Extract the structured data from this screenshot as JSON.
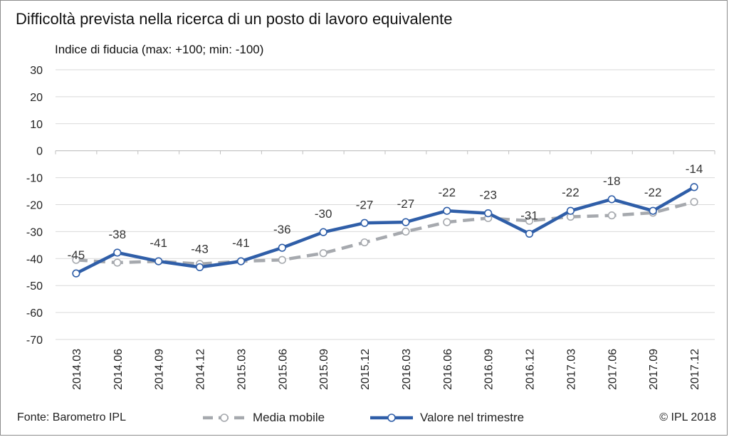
{
  "title": "Difficoltà prevista nella ricerca di un posto di lavoro equivalente",
  "source": "Fonte: Barometro IPL",
  "copyright": "© IPL 2018",
  "chart_data": {
    "type": "line",
    "ylabel": "Indice di fiducia (max: +100; min: -100)",
    "xlabel": "",
    "ylim": [
      -70,
      30
    ],
    "yticks": [
      30,
      20,
      10,
      0,
      -10,
      -20,
      -30,
      -40,
      -50,
      -60,
      -70
    ],
    "grid": true,
    "legend_position": "bottom",
    "categories": [
      "2014.03",
      "2014.06",
      "2014.09",
      "2014.12",
      "2015.03",
      "2015.06",
      "2015.09",
      "2015.12",
      "2016.03",
      "2016.06",
      "2016.09",
      "2016.12",
      "2017.03",
      "2017.06",
      "2017.09",
      "2017.12"
    ],
    "series": [
      {
        "name": "Media mobile",
        "color": "#a6a9ae",
        "style": "dashed",
        "values": [
          -40.5,
          -41.5,
          -41,
          -42,
          -41,
          -40.5,
          -38,
          -34,
          -30,
          -26.5,
          -25,
          -26,
          -24.5,
          -24,
          -23,
          -19
        ]
      },
      {
        "name": "Valore nel trimestre",
        "color": "#2f5ea8",
        "style": "solid",
        "values": [
          -45.5,
          -37.8,
          -41,
          -43.2,
          -41,
          -36,
          -30.2,
          -26.8,
          -26.5,
          -22.3,
          -23.2,
          -30.8,
          -22.3,
          -18,
          -22.3,
          -13.5
        ],
        "labels": [
          "-45",
          "-38",
          "-41",
          "-43",
          "-41",
          "-36",
          "-30",
          "-27",
          "-27",
          "-22",
          "-23",
          "-31",
          "-22",
          "-18",
          "-22",
          "-14"
        ]
      }
    ]
  }
}
